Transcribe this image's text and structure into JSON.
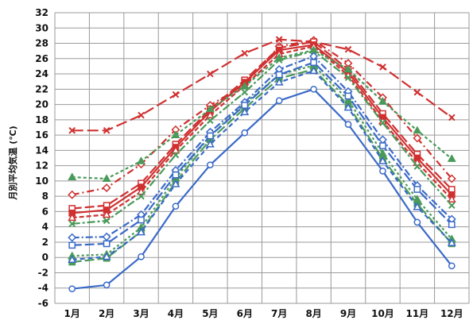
{
  "chart_data": {
    "type": "line",
    "title": "",
    "xlabel": "",
    "ylabel": "月別平均気温 (℃)",
    "ylim": [
      -6,
      32
    ],
    "y_ticks": [
      "-6",
      "-4",
      "-2",
      "0",
      "2",
      "4",
      "6",
      "8",
      "10",
      "12",
      "14",
      "16",
      "18",
      "20",
      "22",
      "24",
      "26",
      "28",
      "30",
      "32"
    ],
    "categories": [
      "1月",
      "2月",
      "3月",
      "4月",
      "5月",
      "6月",
      "7月",
      "8月",
      "9月",
      "10月",
      "11月",
      "12月"
    ],
    "grid": true,
    "legend": "none",
    "series": [
      {
        "color": "#d03030",
        "dash": "14,5",
        "marker": "x",
        "values": [
          16.6,
          16.6,
          18.6,
          21.3,
          24.0,
          26.7,
          28.5,
          28.2,
          27.2,
          24.9,
          21.6,
          18.3
        ]
      },
      {
        "color": "#d03030",
        "dash": "9,4,2,4",
        "marker": "diamond-open",
        "values": [
          8.2,
          9.1,
          12.2,
          16.7,
          19.9,
          22.6,
          27.6,
          28.4,
          25.4,
          20.9,
          15.6,
          10.3
        ]
      },
      {
        "color": "#d03030",
        "dash": "12,4",
        "marker": "square-open",
        "values": [
          6.4,
          6.8,
          9.7,
          14.8,
          19.4,
          23.2,
          27.4,
          28.2,
          24.6,
          18.8,
          13.5,
          8.9
        ]
      },
      {
        "color": "#d03030",
        "dash": "none",
        "marker": "square",
        "values": [
          5.8,
          6.2,
          9.2,
          14.4,
          19.1,
          22.9,
          27.1,
          27.8,
          24.2,
          18.3,
          13.0,
          8.2
        ]
      },
      {
        "color": "#d03030",
        "dash": "6,3",
        "marker": "triangle-open",
        "values": [
          5.2,
          5.6,
          8.6,
          14.0,
          18.6,
          22.5,
          26.6,
          27.6,
          23.8,
          17.8,
          12.4,
          7.6
        ]
      },
      {
        "color": "#4a9a5a",
        "dash": "4,3",
        "marker": "triangle",
        "values": [
          10.5,
          10.3,
          12.6,
          16.0,
          19.4,
          22.4,
          26.1,
          27.1,
          24.6,
          20.4,
          16.6,
          12.9
        ]
      },
      {
        "color": "#4a9a5a",
        "dash": "10,3,3,3",
        "marker": "x",
        "values": [
          4.4,
          4.8,
          8.0,
          13.4,
          17.9,
          21.6,
          25.8,
          27.0,
          23.5,
          17.6,
          11.9,
          6.8
        ]
      },
      {
        "color": "#4a9a5a",
        "dash": "12,4",
        "marker": "square",
        "values": [
          -0.6,
          -0.1,
          3.4,
          9.9,
          15.4,
          19.5,
          23.4,
          24.6,
          19.9,
          12.9,
          7.0,
          1.8
        ]
      },
      {
        "color": "#4a9a5a",
        "dash": "3,3",
        "marker": "triangle",
        "values": [
          0.2,
          0.4,
          3.9,
          10.4,
          15.9,
          20.1,
          23.9,
          25.1,
          20.6,
          13.6,
          7.6,
          2.4
        ]
      },
      {
        "color": "#3a6ac8",
        "dash": "9,3,2,3",
        "marker": "diamond-open",
        "values": [
          2.6,
          2.7,
          5.6,
          11.4,
          16.4,
          20.3,
          24.6,
          26.3,
          21.7,
          15.4,
          9.4,
          5.0
        ]
      },
      {
        "color": "#3a6ac8",
        "dash": "12,4",
        "marker": "square-open",
        "values": [
          1.6,
          1.8,
          4.9,
          10.8,
          15.9,
          19.9,
          23.9,
          25.5,
          21.1,
          14.6,
          8.9,
          4.3
        ]
      },
      {
        "color": "#3a6ac8",
        "dash": "6,4",
        "marker": "triangle-open",
        "values": [
          -0.3,
          0.1,
          3.3,
          9.6,
          14.8,
          19.0,
          22.9,
          24.4,
          19.6,
          12.6,
          6.6,
          1.9
        ]
      },
      {
        "color": "#3a6ac8",
        "dash": "none",
        "marker": "circle-open",
        "values": [
          -4.1,
          -3.6,
          0.1,
          6.7,
          12.1,
          16.3,
          20.5,
          22.0,
          17.4,
          11.3,
          4.6,
          -1.1
        ]
      }
    ]
  }
}
